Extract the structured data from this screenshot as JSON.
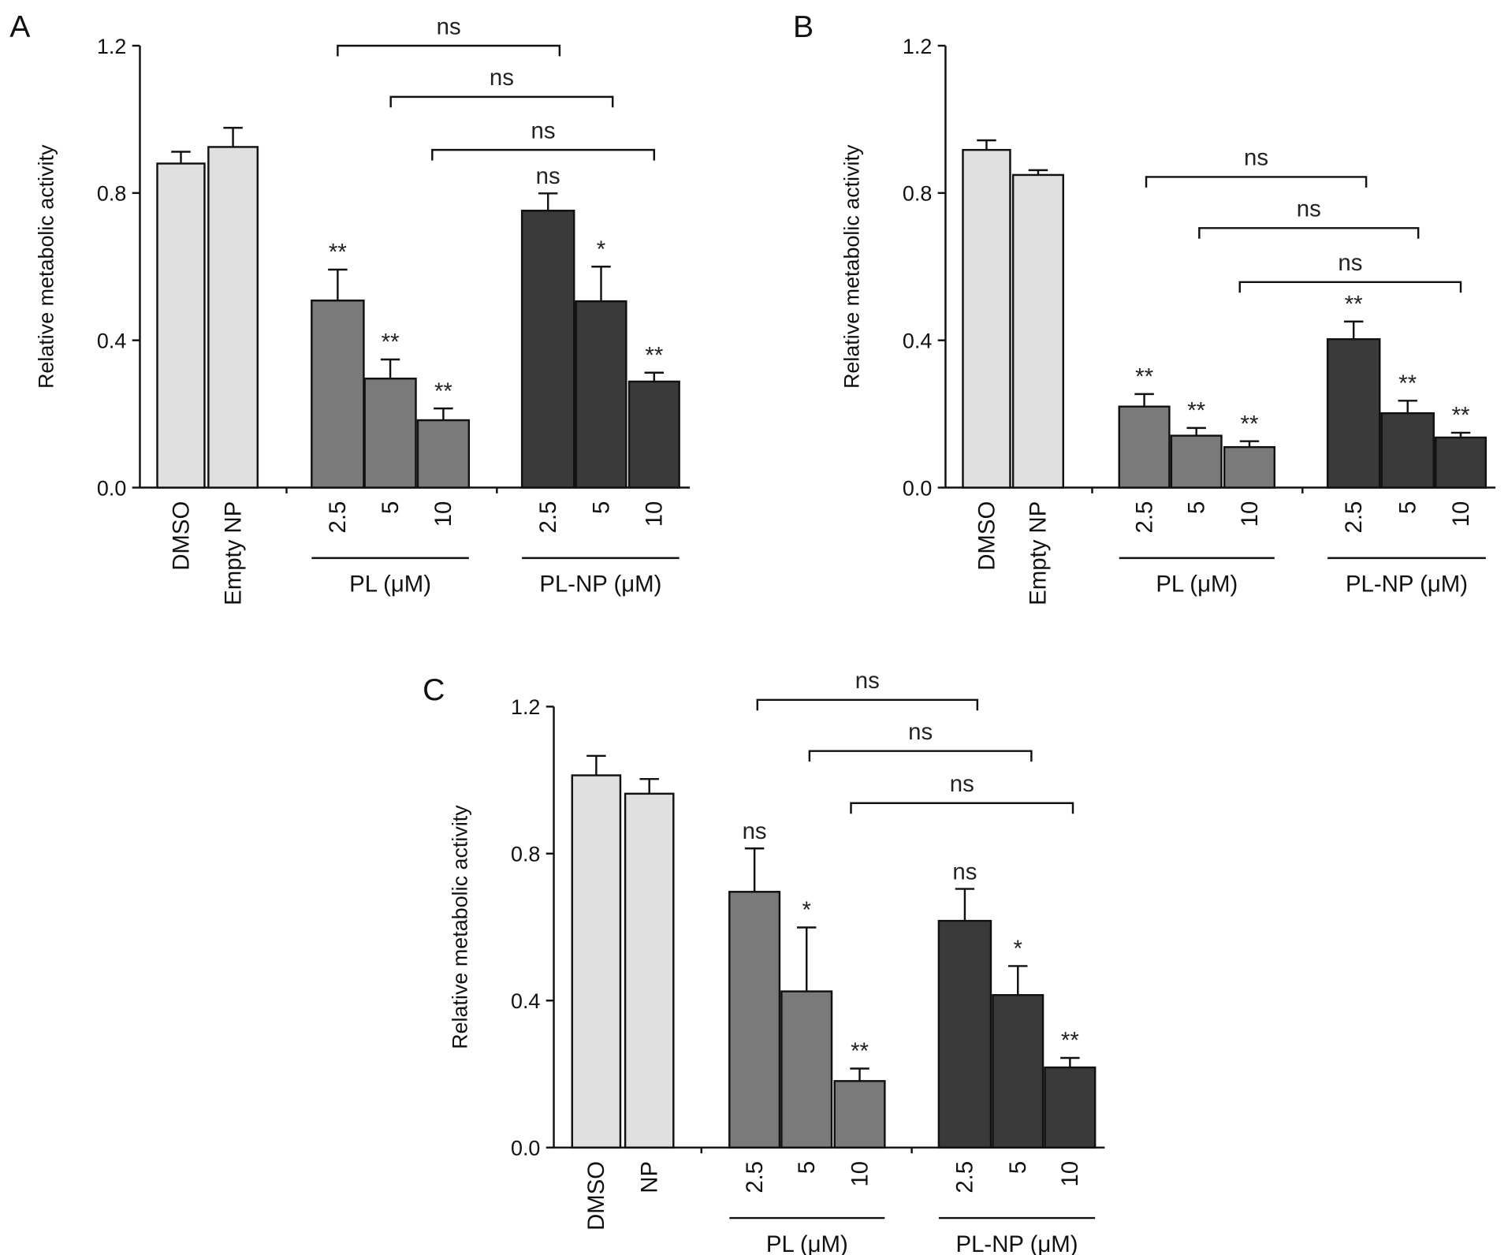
{
  "chart_data": [
    {
      "type": "bar",
      "panel_label": "A",
      "ylabel": "Relative metabolic activity",
      "ylim": [
        0,
        1.2
      ],
      "yticks": [
        "0.0",
        "0.4",
        "0.8",
        "1.2"
      ],
      "categories": [
        "DMSO",
        "Empty NP",
        "2.5",
        "5",
        "10",
        "2.5",
        "5",
        "10"
      ],
      "groups": [
        {
          "label": "PL (μM)",
          "members": [
            2,
            3,
            4
          ]
        },
        {
          "label": "PL-NP (μM)",
          "members": [
            5,
            6,
            7
          ]
        }
      ],
      "values": [
        0.88,
        0.925,
        0.508,
        0.296,
        0.183,
        0.752,
        0.506,
        0.288
      ],
      "error_upper": [
        0.912,
        0.977,
        0.592,
        0.348,
        0.215,
        0.799,
        0.6,
        0.312
      ],
      "significance": [
        "",
        "",
        "**",
        "**",
        "**",
        "ns",
        "*",
        "**"
      ],
      "comparisons": [
        {
          "from": 2,
          "to": 5,
          "label": "ns"
        },
        {
          "from": 3,
          "to": 6,
          "label": "ns"
        },
        {
          "from": 4,
          "to": 7,
          "label": "ns"
        }
      ],
      "colors": [
        "#e0e0e0",
        "#e0e0e0",
        "#7a7a7a",
        "#7a7a7a",
        "#7a7a7a",
        "#3a3a3a",
        "#3a3a3a",
        "#3a3a3a"
      ]
    },
    {
      "type": "bar",
      "panel_label": "B",
      "ylabel": "Relative metabolic activity",
      "ylim": [
        0,
        1.2
      ],
      "yticks": [
        "0.0",
        "0.4",
        "0.8",
        "1.2"
      ],
      "categories": [
        "DMSO",
        "Empty NP",
        "2.5",
        "5",
        "10",
        "2.5",
        "5",
        "10"
      ],
      "groups": [
        {
          "label": "PL (μM)",
          "members": [
            2,
            3,
            4
          ]
        },
        {
          "label": "PL-NP (μM)",
          "members": [
            5,
            6,
            7
          ]
        }
      ],
      "values": [
        0.917,
        0.849,
        0.22,
        0.141,
        0.11,
        0.403,
        0.202,
        0.136
      ],
      "error_upper": [
        0.943,
        0.862,
        0.254,
        0.162,
        0.126,
        0.451,
        0.236,
        0.149
      ],
      "significance": [
        "",
        "",
        "**",
        "**",
        "**",
        "**",
        "**",
        "**"
      ],
      "comparisons": [
        {
          "from": 2,
          "to": 5,
          "label": "ns"
        },
        {
          "from": 3,
          "to": 6,
          "label": "ns"
        },
        {
          "from": 4,
          "to": 7,
          "label": "ns"
        }
      ],
      "colors": [
        "#e0e0e0",
        "#e0e0e0",
        "#7a7a7a",
        "#7a7a7a",
        "#7a7a7a",
        "#3a3a3a",
        "#3a3a3a",
        "#3a3a3a"
      ]
    },
    {
      "type": "bar",
      "panel_label": "C",
      "ylabel": "Relative metabolic activity",
      "ylim": [
        0,
        1.2
      ],
      "yticks": [
        "0.0",
        "0.4",
        "0.8",
        "1.2"
      ],
      "categories": [
        "DMSO",
        "NP",
        "2.5",
        "5",
        "10",
        "2.5",
        "5",
        "10"
      ],
      "groups": [
        {
          "label": "PL (μM)",
          "members": [
            2,
            3,
            4
          ]
        },
        {
          "label": "PL-NP (μM)",
          "members": [
            5,
            6,
            7
          ]
        }
      ],
      "values": [
        1.013,
        0.963,
        0.696,
        0.425,
        0.181,
        0.617,
        0.415,
        0.218
      ],
      "error_upper": [
        1.066,
        1.003,
        0.814,
        0.599,
        0.215,
        0.704,
        0.494,
        0.244
      ],
      "significance": [
        "",
        "",
        "ns",
        "*",
        "**",
        "ns",
        "*",
        "**"
      ],
      "comparisons": [
        {
          "from": 2,
          "to": 5,
          "label": "ns"
        },
        {
          "from": 3,
          "to": 6,
          "label": "ns"
        },
        {
          "from": 4,
          "to": 7,
          "label": "ns"
        }
      ],
      "colors": [
        "#e0e0e0",
        "#e0e0e0",
        "#7a7a7a",
        "#7a7a7a",
        "#7a7a7a",
        "#3a3a3a",
        "#3a3a3a",
        "#3a3a3a"
      ]
    }
  ]
}
